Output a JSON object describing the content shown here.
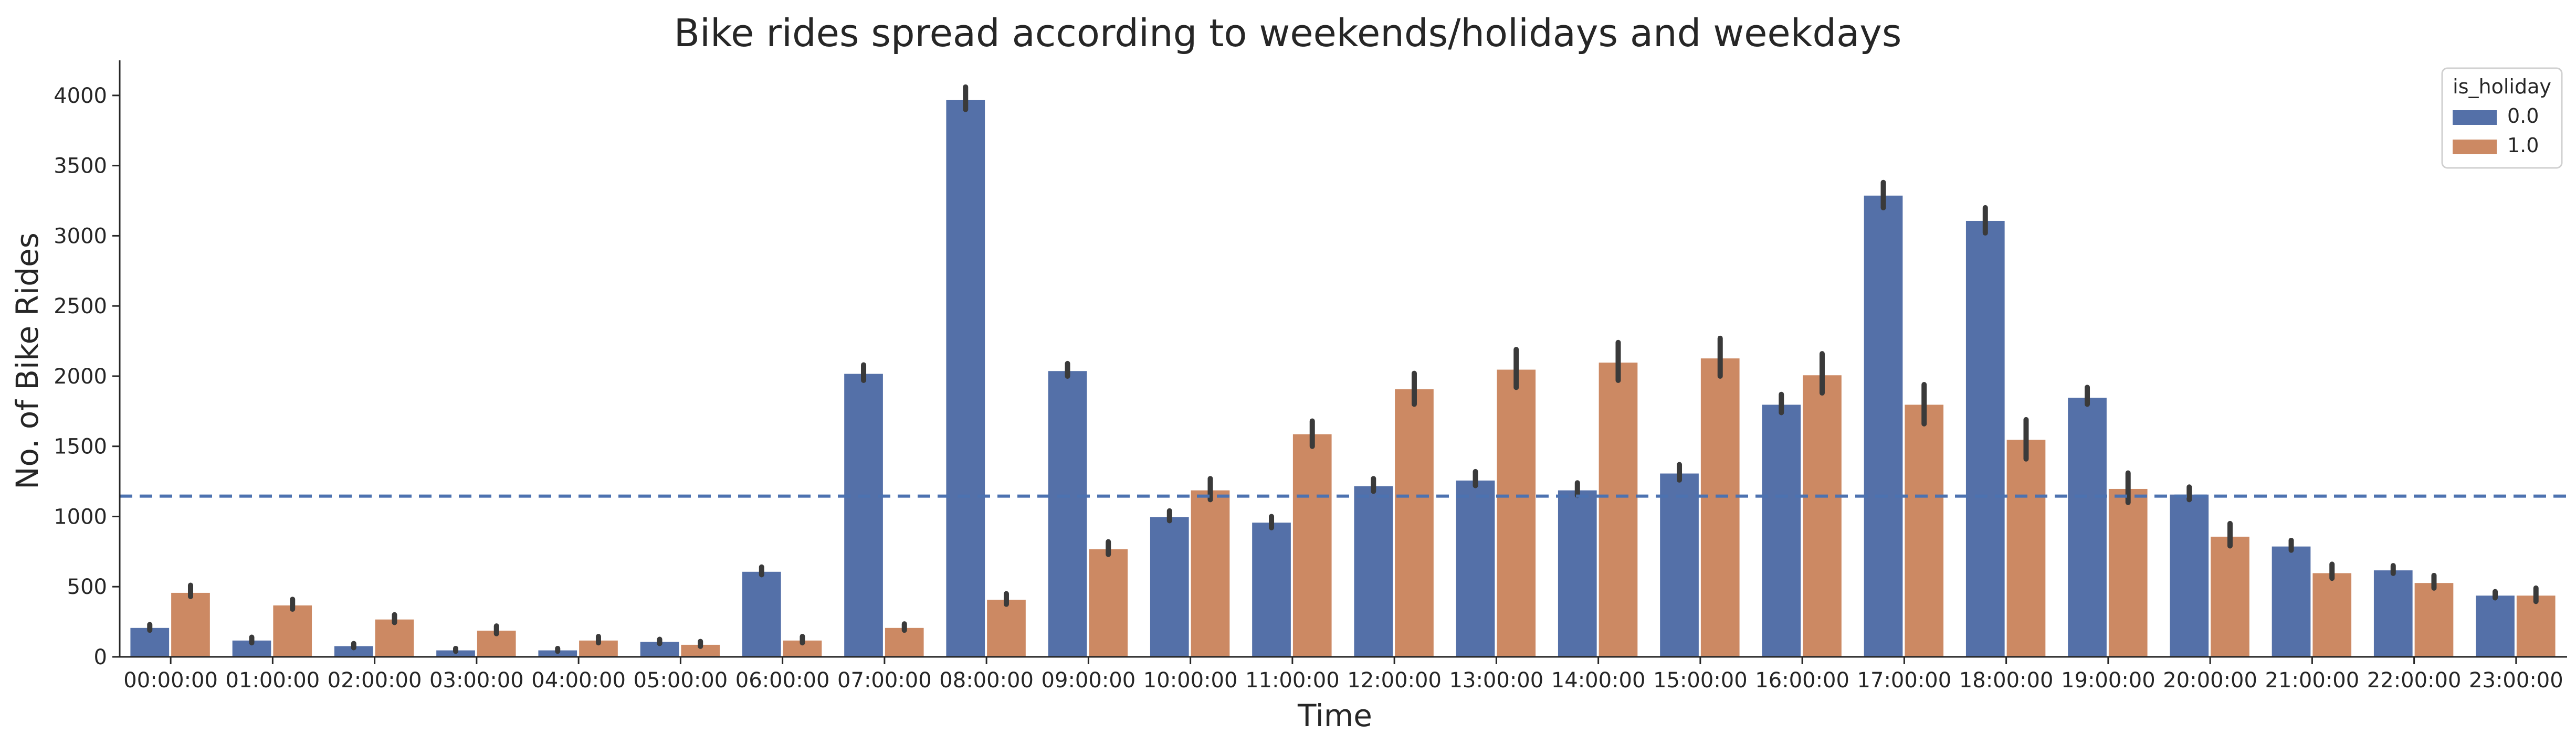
{
  "chart_data": {
    "type": "bar",
    "title": "Bike rides spread according to weekends/holidays and weekdays",
    "xlabel": "Time",
    "ylabel": "No. of Bike Rides",
    "ylim": [
      0,
      4250
    ],
    "yticks": [
      0,
      500,
      1000,
      1500,
      2000,
      2500,
      3000,
      3500,
      4000
    ],
    "grid": false,
    "legend_position": "top-right",
    "legend_title": "is_holiday",
    "categories": [
      "00:00:00",
      "01:00:00",
      "02:00:00",
      "03:00:00",
      "04:00:00",
      "05:00:00",
      "06:00:00",
      "07:00:00",
      "08:00:00",
      "09:00:00",
      "10:00:00",
      "11:00:00",
      "12:00:00",
      "13:00:00",
      "14:00:00",
      "15:00:00",
      "16:00:00",
      "17:00:00",
      "18:00:00",
      "19:00:00",
      "20:00:00",
      "21:00:00",
      "22:00:00",
      "23:00:00"
    ],
    "series": [
      {
        "name": "0.0",
        "color": "#5470a8",
        "values": [
          210,
          120,
          80,
          50,
          50,
          110,
          610,
          2020,
          3970,
          2040,
          1000,
          960,
          1220,
          1260,
          1190,
          1310,
          1800,
          3290,
          3110,
          1850,
          1160,
          790,
          620,
          440
        ],
        "err_low": [
          190,
          100,
          65,
          40,
          40,
          95,
          585,
          1970,
          3900,
          2000,
          970,
          920,
          1180,
          1220,
          1150,
          1260,
          1740,
          3200,
          3020,
          1800,
          1120,
          760,
          595,
          420
        ],
        "err_high": [
          230,
          140,
          95,
          60,
          60,
          125,
          640,
          2080,
          4060,
          2090,
          1040,
          1000,
          1270,
          1320,
          1240,
          1370,
          1870,
          3380,
          3200,
          1920,
          1210,
          830,
          650,
          465
        ]
      },
      {
        "name": "1.0",
        "color": "#cc8963",
        "values": [
          460,
          370,
          270,
          190,
          120,
          90,
          120,
          210,
          410,
          770,
          1190,
          1590,
          1910,
          2050,
          2100,
          2130,
          2010,
          1800,
          1550,
          1200,
          860,
          600,
          530,
          440
        ],
        "err_low": [
          430,
          340,
          245,
          165,
          100,
          75,
          100,
          190,
          375,
          730,
          1120,
          1500,
          1800,
          1920,
          1970,
          2000,
          1880,
          1660,
          1410,
          1100,
          790,
          560,
          490,
          395
        ],
        "err_high": [
          510,
          410,
          300,
          220,
          145,
          110,
          145,
          235,
          450,
          820,
          1270,
          1680,
          2020,
          2190,
          2240,
          2270,
          2160,
          1940,
          1690,
          1310,
          950,
          660,
          580,
          490
        ]
      }
    ],
    "reference_line": {
      "value": 1145,
      "color": "#4c72b0",
      "style": "dashed"
    }
  }
}
